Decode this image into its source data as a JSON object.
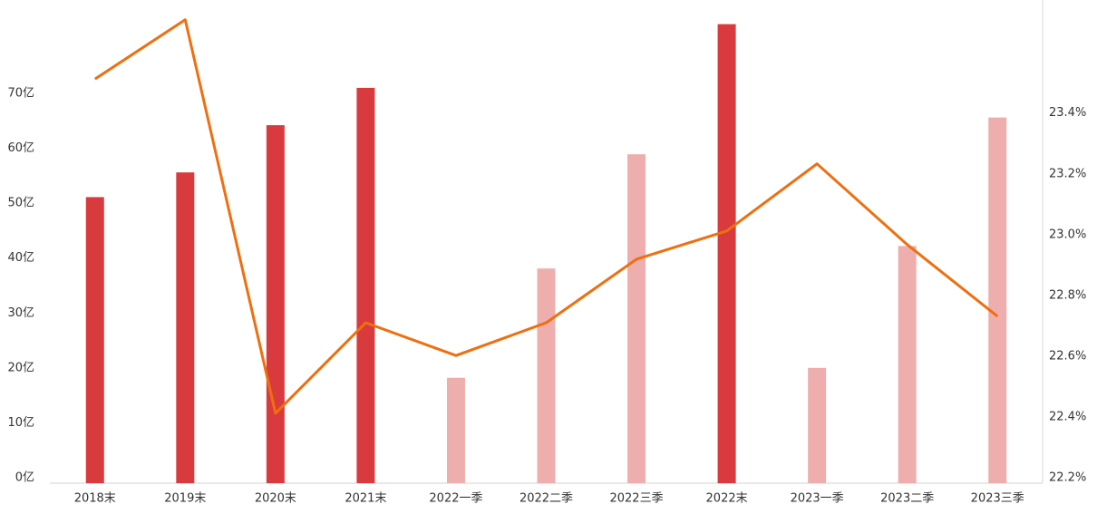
{
  "chart_data": {
    "type": "bar-line",
    "categories": [
      "2018末",
      "2019末",
      "2020末",
      "2021末",
      "2022一季",
      "2022二季",
      "2022三季",
      "2022末",
      "2023一季",
      "2023二季",
      "2023三季"
    ],
    "series": [
      {
        "type": "bar",
        "colors": [
          "#d93a3d",
          "#d93a3d",
          "#d93a3d",
          "#d93a3d",
          "#efaeae",
          "#efaeae",
          "#efaeae",
          "#d93a3d",
          "#efaeae",
          "#efaeae",
          "#efaeae"
        ],
        "values": [
          52.1,
          56.6,
          65.2,
          72,
          19.2,
          39.1,
          59.9,
          83.6,
          21,
          43.2,
          66.6
        ]
      },
      {
        "type": "line",
        "axis": "y2",
        "color": "#ef6f0f",
        "values": [
          23.53,
          23.725,
          22.43,
          22.728,
          22.62,
          22.728,
          22.937,
          23.03,
          23.251,
          22.985,
          22.749
        ]
      }
    ],
    "ylim": [
      0,
      88
    ],
    "yticks": [
      {
        "value": 0,
        "label": "0亿"
      },
      {
        "value": 10,
        "label": "10亿"
      },
      {
        "value": 20,
        "label": "20亿"
      },
      {
        "value": 30,
        "label": "30亿"
      },
      {
        "value": 40,
        "label": "40亿"
      },
      {
        "value": 50,
        "label": "50亿"
      },
      {
        "value": 60,
        "label": "60亿"
      },
      {
        "value": 70,
        "label": "70亿"
      }
    ],
    "y2lim": [
      22.2,
      23.79
    ],
    "y2ticks": [
      {
        "value": 22.2,
        "label": "22.2%"
      },
      {
        "value": 22.4,
        "label": "22.4%"
      },
      {
        "value": 22.6,
        "label": "22.6%"
      },
      {
        "value": 22.8,
        "label": "22.8%"
      },
      {
        "value": 23.0,
        "label": "23.0%"
      },
      {
        "value": 23.2,
        "label": "23.2%"
      },
      {
        "value": 23.4,
        "label": "23.4%"
      }
    ]
  }
}
